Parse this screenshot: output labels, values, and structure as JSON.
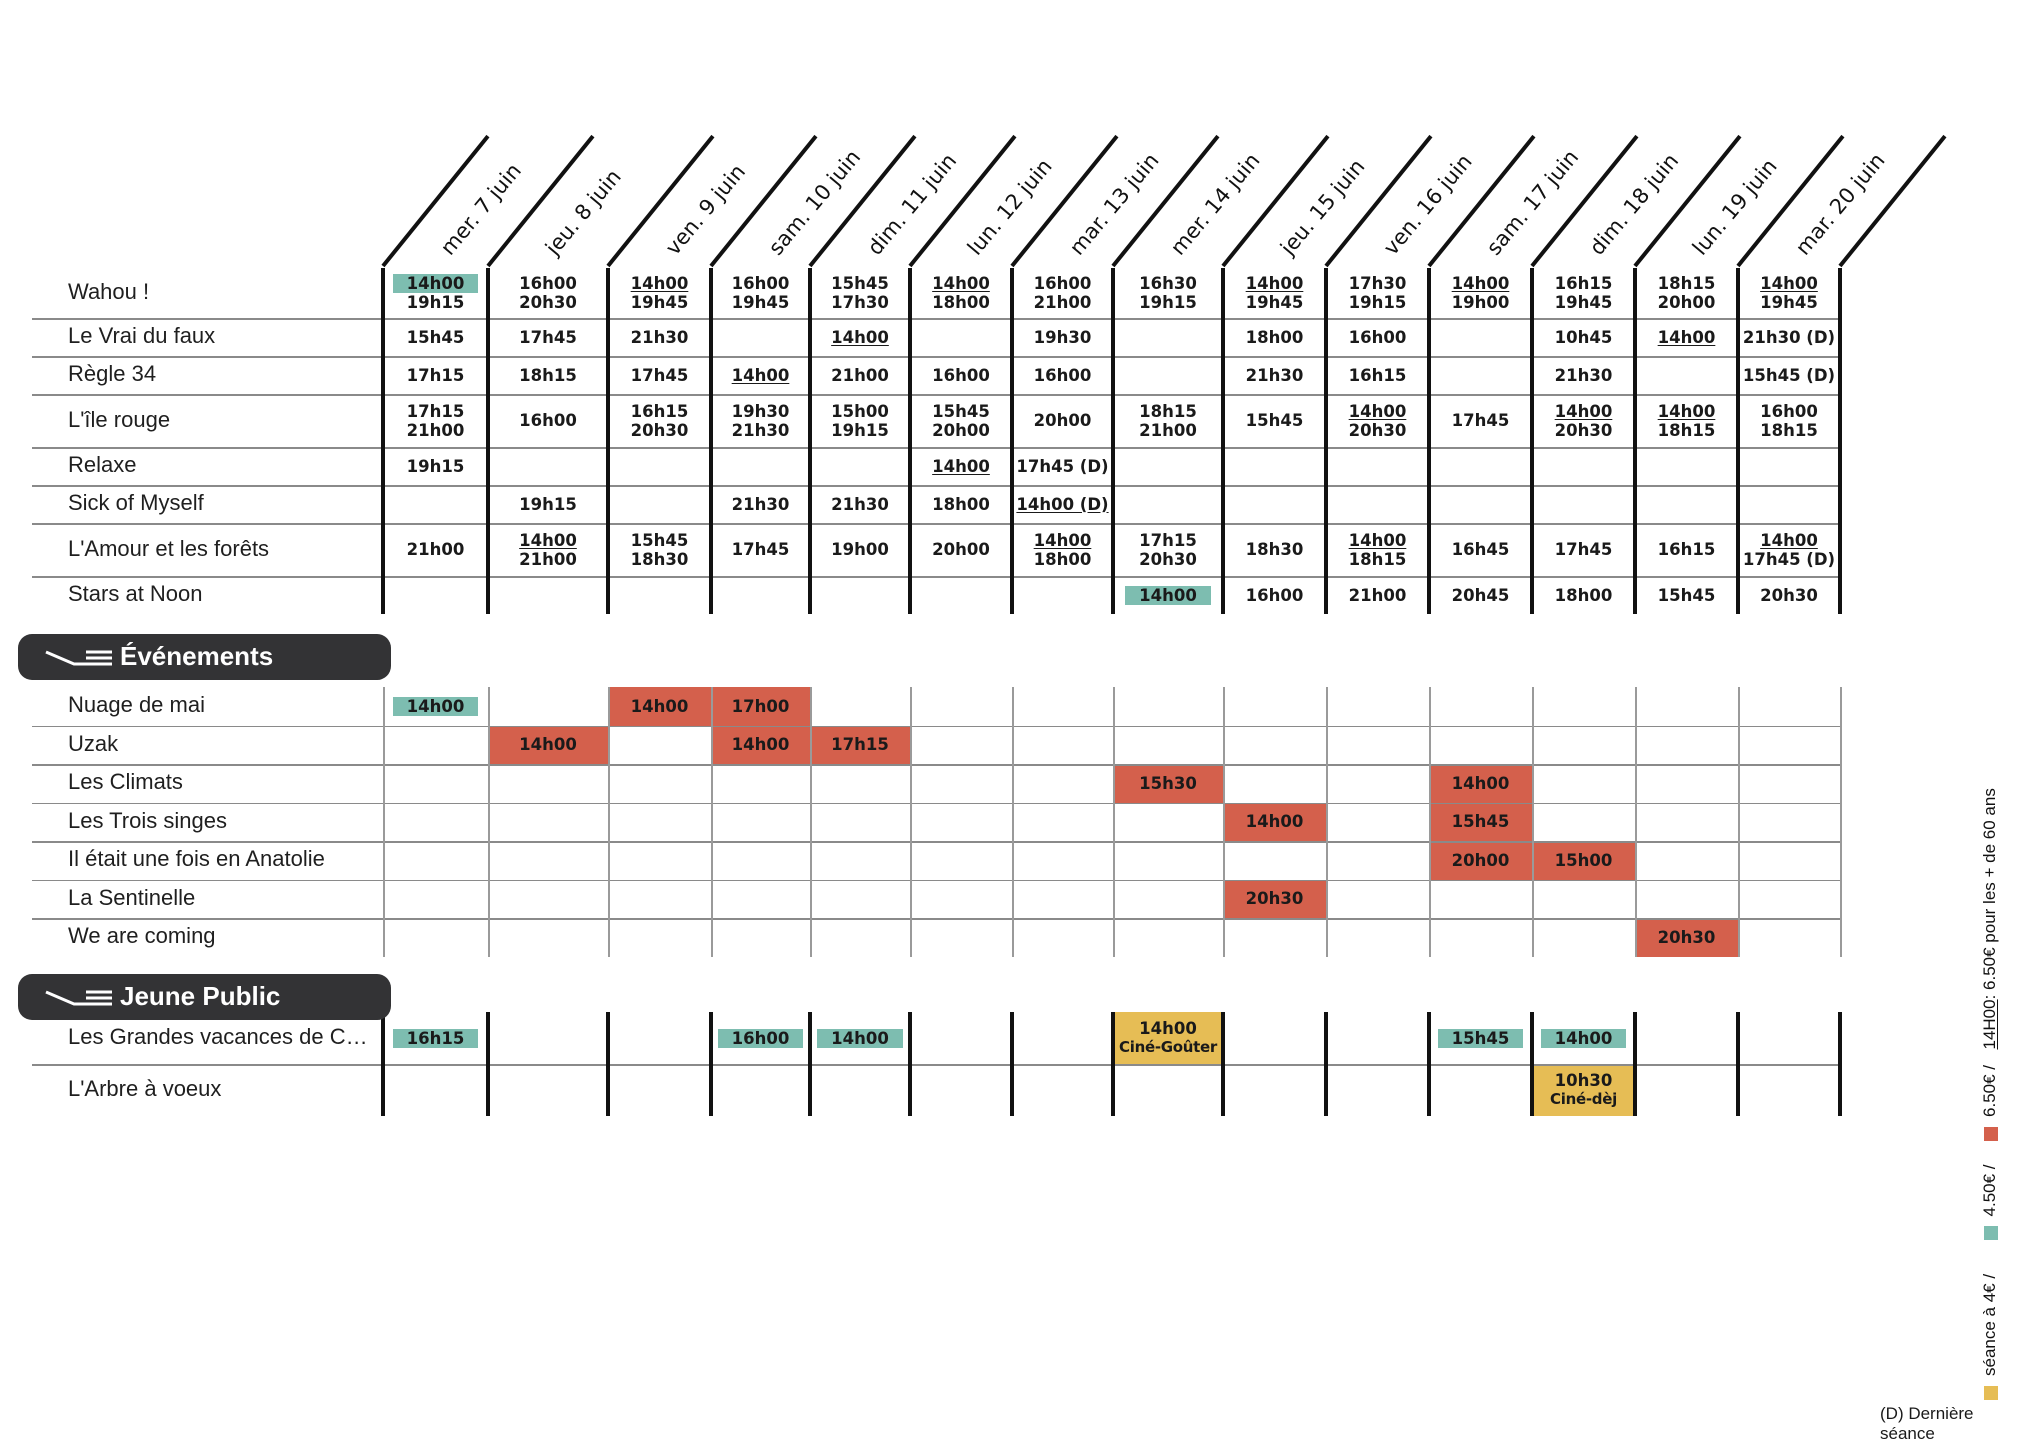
{
  "dates": [
    "mer. 7 juin",
    "jeu. 8 juin",
    "ven. 9 juin",
    "sam. 10 juin",
    "dim. 11 juin",
    "lun. 12 juin",
    "mar. 13 juin",
    "mer. 14 juin",
    "jeu. 15 juin",
    "ven. 16 juin",
    "sam. 17 juin",
    "dim. 18 juin",
    "lun. 19 juin",
    "mar. 20 juin"
  ],
  "films": [
    {
      "title": "Wahou !",
      "sessions": [
        [
          "~14h00",
          "19h15"
        ],
        [
          "16h00",
          "20h30"
        ],
        [
          "_14h00",
          "19h45"
        ],
        [
          "16h00",
          "19h45"
        ],
        [
          "15h45",
          "17h30"
        ],
        [
          "_14h00",
          "18h00"
        ],
        [
          "16h00",
          "21h00"
        ],
        [
          "16h30",
          "19h15"
        ],
        [
          "_14h00",
          "19h45"
        ],
        [
          "17h30",
          "19h15"
        ],
        [
          "_14h00",
          "19h00"
        ],
        [
          "16h15",
          "19h45"
        ],
        [
          "18h15",
          "20h00"
        ],
        [
          "_14h00",
          "19h45"
        ]
      ]
    },
    {
      "title": "Le Vrai du faux",
      "sessions": [
        [
          "15h45"
        ],
        [
          "17h45"
        ],
        [
          "21h30"
        ],
        [],
        [
          "_14h00"
        ],
        [],
        [
          "19h30"
        ],
        [],
        [
          "18h00"
        ],
        [
          "16h00"
        ],
        [],
        [
          "10h45"
        ],
        [
          "_14h00"
        ],
        [
          "21h30 (D)"
        ]
      ]
    },
    {
      "title": "Règle 34",
      "sessions": [
        [
          "17h15"
        ],
        [
          "18h15"
        ],
        [
          "17h45"
        ],
        [
          "_14h00"
        ],
        [
          "21h00"
        ],
        [
          "16h00"
        ],
        [
          "16h00"
        ],
        [],
        [
          "21h30"
        ],
        [
          "16h15"
        ],
        [],
        [
          "21h30"
        ],
        [],
        [
          "15h45 (D)"
        ]
      ]
    },
    {
      "title": "L'île rouge",
      "sessions": [
        [
          "17h15",
          "21h00"
        ],
        [
          "16h00"
        ],
        [
          "16h15",
          "20h30"
        ],
        [
          "19h30",
          "21h30"
        ],
        [
          "15h00",
          "19h15"
        ],
        [
          "15h45",
          "20h00"
        ],
        [
          "20h00"
        ],
        [
          "18h15",
          "21h00"
        ],
        [
          "15h45"
        ],
        [
          "_14h00",
          "20h30"
        ],
        [
          "17h45"
        ],
        [
          "_14h00",
          "20h30"
        ],
        [
          "_14h00",
          "18h15"
        ],
        [
          "16h00",
          "18h15"
        ]
      ]
    },
    {
      "title": "Relaxe",
      "sessions": [
        [
          "19h15"
        ],
        [],
        [],
        [],
        [],
        [
          "_14h00"
        ],
        [
          "17h45 (D)"
        ],
        [],
        [],
        [],
        [],
        [],
        [],
        []
      ]
    },
    {
      "title": "Sick of Myself",
      "sessions": [
        [],
        [
          "19h15"
        ],
        [],
        [
          "21h30"
        ],
        [
          "21h30"
        ],
        [
          "18h00"
        ],
        [
          "_14h00 (D)"
        ],
        [],
        [],
        [],
        [],
        [],
        [],
        []
      ]
    },
    {
      "title": "L'Amour et les forêts",
      "sessions": [
        [
          "21h00"
        ],
        [
          "_14h00",
          "21h00"
        ],
        [
          "15h45",
          "18h30"
        ],
        [
          "17h45"
        ],
        [
          "19h00"
        ],
        [
          "20h00"
        ],
        [
          "_14h00",
          "18h00"
        ],
        [
          "17h15",
          "20h30"
        ],
        [
          "18h30"
        ],
        [
          "_14h00",
          "18h15"
        ],
        [
          "16h45"
        ],
        [
          "17h45"
        ],
        [
          "16h15"
        ],
        [
          "_14h00",
          "17h45 (D)"
        ]
      ]
    },
    {
      "title": "Stars at Noon",
      "sessions": [
        [],
        [],
        [],
        [],
        [],
        [],
        [],
        [
          "~14h00"
        ],
        [
          "16h00"
        ],
        [
          "21h00"
        ],
        [
          "20h45"
        ],
        [
          "18h00"
        ],
        [
          "15h45"
        ],
        [
          "20h30"
        ]
      ]
    }
  ],
  "sections": {
    "events": "Événements",
    "youth": "Jeune Public"
  },
  "events": [
    {
      "title": "Nuage de mai",
      "cells": [
        {
          "col": 0,
          "time": "14h00",
          "style": "teal"
        },
        {
          "col": 2,
          "time": "14h00",
          "style": "red"
        },
        {
          "col": 3,
          "time": "17h00",
          "style": "red"
        }
      ]
    },
    {
      "title": "Uzak",
      "cells": [
        {
          "col": 1,
          "time": "14h00",
          "style": "red"
        },
        {
          "col": 3,
          "time": "14h00",
          "style": "red"
        },
        {
          "col": 4,
          "time": "17h15",
          "style": "red"
        }
      ]
    },
    {
      "title": "Les Climats",
      "cells": [
        {
          "col": 7,
          "time": "15h30",
          "style": "red"
        },
        {
          "col": 10,
          "time": "14h00",
          "style": "red"
        }
      ]
    },
    {
      "title": "Les Trois singes",
      "cells": [
        {
          "col": 8,
          "time": "14h00",
          "style": "red"
        },
        {
          "col": 10,
          "time": "15h45",
          "style": "red"
        }
      ]
    },
    {
      "title": "Il était une fois en Anatolie",
      "cells": [
        {
          "col": 10,
          "time": "20h00",
          "style": "red"
        },
        {
          "col": 11,
          "time": "15h00",
          "style": "red"
        }
      ]
    },
    {
      "title": "La Sentinelle",
      "cells": [
        {
          "col": 8,
          "time": "20h30",
          "style": "red"
        }
      ]
    },
    {
      "title": "We are coming",
      "cells": [
        {
          "col": 12,
          "time": "20h30",
          "style": "red"
        }
      ]
    }
  ],
  "youth": [
    {
      "title": "Les Grandes vacances de Cowboy ...",
      "cells": [
        {
          "col": 0,
          "time": "16h15",
          "style": "teal"
        },
        {
          "col": 3,
          "time": "16h00",
          "style": "teal"
        },
        {
          "col": 4,
          "time": "14h00",
          "style": "teal"
        },
        {
          "col": 7,
          "time": "14h00",
          "sub": "Ciné-Goûter",
          "style": "yellow"
        },
        {
          "col": 10,
          "time": "15h45",
          "style": "teal"
        },
        {
          "col": 11,
          "time": "14h00",
          "style": "teal"
        }
      ]
    },
    {
      "title": "L'Arbre à voeux",
      "cells": [
        {
          "col": 11,
          "time": "10h30",
          "sub": "Ciné-dèj",
          "style": "yellow"
        }
      ]
    }
  ],
  "legend": {
    "yellow_label": "séance à 4€ /",
    "teal_label": "4.50€ /",
    "red_label": "6.50€ /",
    "underline_time": "14H00",
    "senior_label": ": 6.50€ pour les + de 60 ans",
    "last_session_note": "(D) Dernière séance"
  },
  "colors": {
    "teal": "#7dbdb0",
    "red": "#d4604c",
    "yellow": "#e6bd55",
    "dark": "#333335"
  },
  "icons": {
    "section_icon": "reclining-seat-icon"
  }
}
